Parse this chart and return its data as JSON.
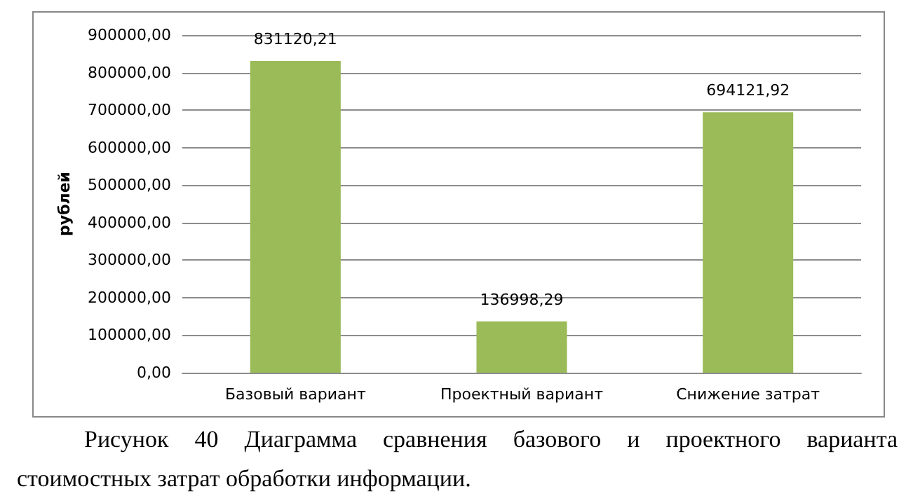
{
  "chart_data": {
    "type": "bar",
    "ylabel": "рублей",
    "categories": [
      "Базовый вариант",
      "Проектный вариант",
      "Снижение затрат"
    ],
    "values": [
      831120.21,
      136998.29,
      694121.92
    ],
    "color": "#9bbb59",
    "value_labels": [
      "831120,21",
      "136998,29",
      "694121,92"
    ],
    "ylim": [
      0,
      900000
    ],
    "yticks": [
      {
        "value": 0,
        "label": "0,00"
      },
      {
        "value": 100000,
        "label": "100000,00"
      },
      {
        "value": 200000,
        "label": "200000,00"
      },
      {
        "value": 300000,
        "label": "300000,00"
      },
      {
        "value": 400000,
        "label": "400000,00"
      },
      {
        "value": 500000,
        "label": "500000,00"
      },
      {
        "value": 600000,
        "label": "600000,00"
      },
      {
        "value": 700000,
        "label": "700000,00"
      },
      {
        "value": 800000,
        "label": "800000,00"
      },
      {
        "value": 900000,
        "label": "900000,00"
      }
    ],
    "grid": "y",
    "annotations": [
      "Рисунок 40 Диаграмма сравнения базового и проектного варианта стоимостных затрат обработки информации."
    ]
  }
}
